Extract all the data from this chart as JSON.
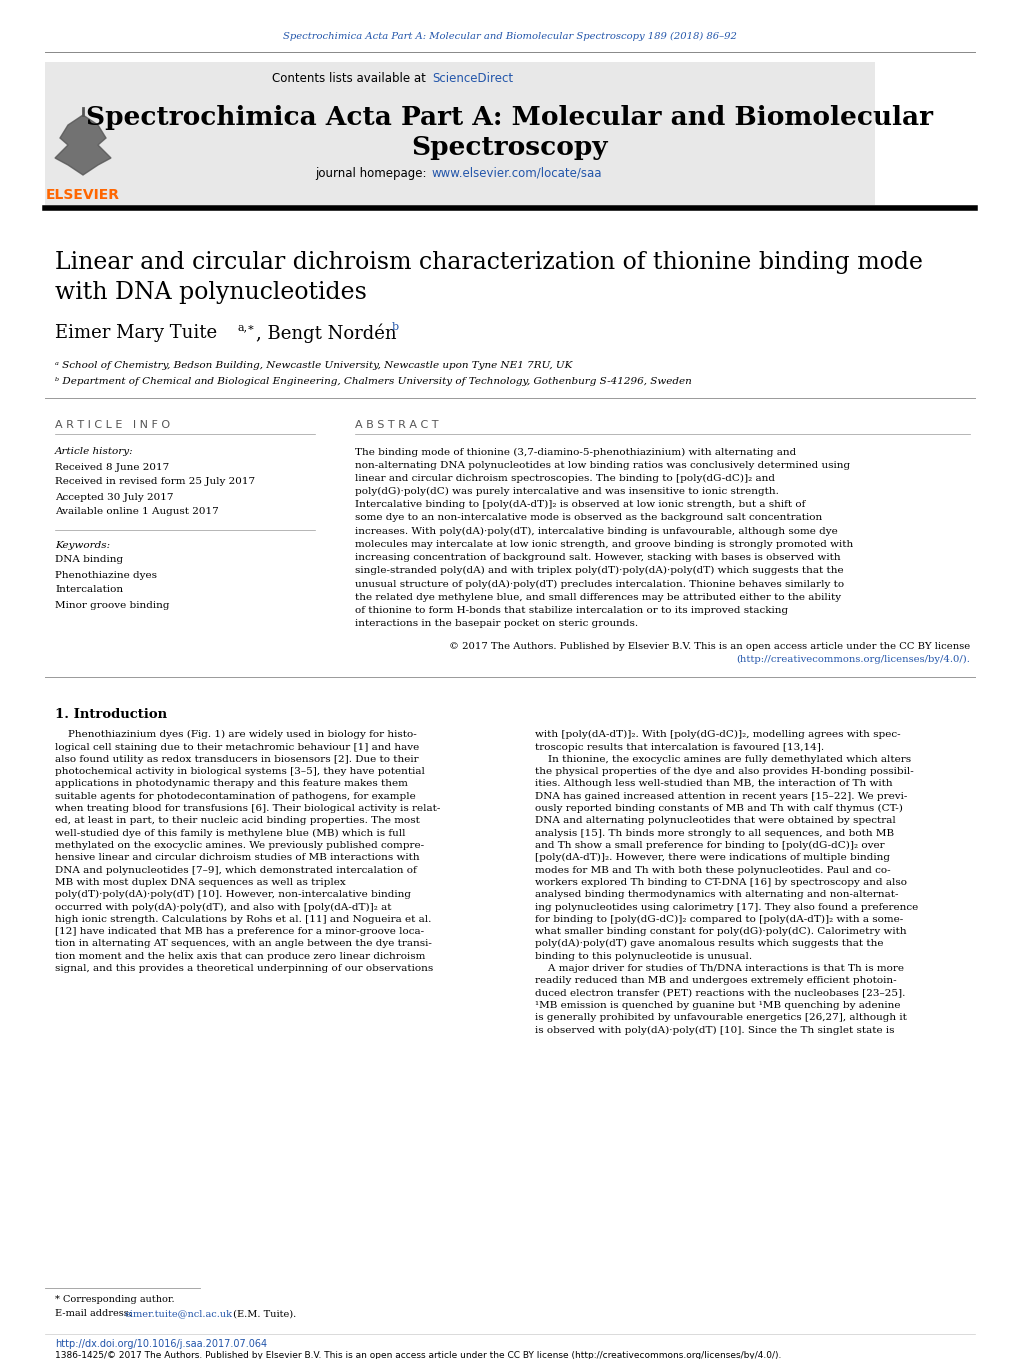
{
  "page_width": 10.2,
  "page_height": 13.59,
  "background_color": "#ffffff",
  "top_link_text": "Spectrochimica Acta Part A: Molecular and Biomolecular Spectroscopy 189 (2018) 86–92",
  "top_link_color": "#2255aa",
  "header_bg_color": "#e8e8e8",
  "journal_title_line1": "Spectrochimica Acta Part A: Molecular and Biomolecular",
  "journal_title_line2": "Spectroscopy",
  "homepage_link_color": "#2255aa",
  "article_title_line1": "Linear and circular dichroism characterization of thionine binding mode",
  "article_title_line2": "with DNA polynucleotides",
  "authors_line": "Eimer Mary Tuite",
  "author2_line": ", Bengt Nordén",
  "affil1": "ᵃ School of Chemistry, Bedson Building, Newcastle University, Newcastle upon Tyne NE1 7RU, UK",
  "affil2": "ᵇ Department of Chemical and Biological Engineering, Chalmers University of Technology, Gothenburg S-41296, Sweden",
  "article_info_header": "A R T I C L E   I N F O",
  "abstract_header": "A B S T R A C T",
  "article_history_label": "Article history:",
  "received": "Received 8 June 2017",
  "received_revised": "Received in revised form 25 July 2017",
  "accepted": "Accepted 30 July 2017",
  "available": "Available online 1 August 2017",
  "keywords_label": "Keywords:",
  "keywords": [
    "DNA binding",
    "Phenothiazine dyes",
    "Intercalation",
    "Minor groove binding"
  ],
  "abstract_text": "The binding mode of thionine (3,7-diamino-5-phenothiazinium) with alternating and non-alternating DNA polynucleotides at low binding ratios was conclusively determined using linear and circular dichroism spectroscopies. The binding to [poly(dG-dC)]₂ and poly(dG)·poly(dC) was purely intercalative and was insensitive to ionic strength. Intercalative binding to [poly(dA-dT)]₂ is observed at low ionic strength, but a shift of some dye to an non-intercalative mode is observed as the background salt concentration increases. With poly(dA)·poly(dT), intercalative binding is unfavourable, although some dye molecules may intercalate at low ionic strength, and groove binding is strongly promoted with increasing concentration of background salt. However, stacking with bases is observed with single-stranded poly(dA) and with triplex poly(dT)·poly(dA)·poly(dT) which suggests that the unusual structure of poly(dA)·poly(dT) precludes intercalation. Thionine behaves similarly to the related dye methylene blue, and small differences may be attributed either to the ability of thionine to form H-bonds that stabilize intercalation or to its improved stacking interactions in the basepair pocket on steric grounds.",
  "copyright_line1": "© 2017 The Authors. Published by Elsevier B.V. This is an open access article under the CC BY license",
  "copyright_line2": "(http://creativecommons.org/licenses/by/4.0/).",
  "intro_heading": "1. Introduction",
  "intro_col1_lines": [
    "    Phenothiazinium dyes (Fig. 1) are widely used in biology for histo-",
    "logical cell staining due to their metachromic behaviour [1] and have",
    "also found utility as redox transducers in biosensors [2]. Due to their",
    "photochemical activity in biological systems [3–5], they have potential",
    "applications in photodynamic therapy and this feature makes them",
    "suitable agents for photodecontamination of pathogens, for example",
    "when treating blood for transfusions [6]. Their biological activity is relat-",
    "ed, at least in part, to their nucleic acid binding properties. The most",
    "well-studied dye of this family is methylene blue (MB) which is full",
    "methylated on the exocyclic amines. We previously published compre-",
    "hensive linear and circular dichroism studies of MB interactions with",
    "DNA and polynucleotides [7–9], which demonstrated intercalation of",
    "MB with most duplex DNA sequences as well as triplex",
    "poly(dT)·poly(dA)·poly(dT) [10]. However, non-intercalative binding",
    "occurred with poly(dA)·poly(dT), and also with [poly(dA-dT)]₂ at",
    "high ionic strength. Calculations by Rohs et al. [11] and Nogueira et al.",
    "[12] have indicated that MB has a preference for a minor-groove loca-",
    "tion in alternating AT sequences, with an angle between the dye transi-",
    "tion moment and the helix axis that can produce zero linear dichroism",
    "signal, and this provides a theoretical underpinning of our observations"
  ],
  "intro_col2_lines": [
    "with [poly(dA-dT)]₂. With [poly(dG-dC)]₂, modelling agrees with spec-",
    "troscopic results that intercalation is favoured [13,14].",
    "    In thionine, the exocyclic amines are fully demethylated which alters",
    "the physical properties of the dye and also provides H-bonding possibil-",
    "ities. Although less well-studied than MB, the interaction of Th with",
    "DNA has gained increased attention in recent years [15–22]. We previ-",
    "ously reported binding constants of MB and Th with calf thymus (CT-)",
    "DNA and alternating polynucleotides that were obtained by spectral",
    "analysis [15]. Th binds more strongly to all sequences, and both MB",
    "and Th show a small preference for binding to [poly(dG-dC)]₂ over",
    "[poly(dA-dT)]₂. However, there were indications of multiple binding",
    "modes for MB and Th with both these polynucleotides. Paul and co-",
    "workers explored Th binding to CT-DNA [16] by spectroscopy and also",
    "analysed binding thermodynamics with alternating and non-alternat-",
    "ing polynucleotides using calorimetry [17]. They also found a preference",
    "for binding to [poly(dG-dC)]₂ compared to [poly(dA-dT)]₂ with a some-",
    "what smaller binding constant for poly(dG)·poly(dC). Calorimetry with",
    "poly(dA)·poly(dT) gave anomalous results which suggests that the",
    "binding to this polynucleotide is unusual.",
    "    A major driver for studies of Th/DNA interactions is that Th is more",
    "readily reduced than MB and undergoes extremely efficient photoin-",
    "duced electron transfer (PET) reactions with the nucleobases [23–25].",
    "¹MB emission is quenched by guanine but ¹MB quenching by adenine",
    "is generally prohibited by unfavourable energetics [26,27], although it",
    "is observed with poly(dA)·poly(dT) [10]. Since the Th singlet state is"
  ],
  "footer_doi": "http://dx.doi.org/10.1016/j.saa.2017.07.064",
  "footer_text": "1386-1425/© 2017 The Authors. Published by Elsevier B.V. This is an open access article under the CC BY license (http://creativecommons.org/licenses/by/4.0/).",
  "corresponding_note": "* Corresponding author.",
  "email_label": "E-mail address: ",
  "email_link": "eimer.tuite@ncl.ac.uk",
  "email_suffix": " (E.M. Tuite).",
  "elsevier_orange": "#ff6600",
  "link_color": "#2255aa",
  "divider_dark": "#000000",
  "divider_light": "#999999"
}
